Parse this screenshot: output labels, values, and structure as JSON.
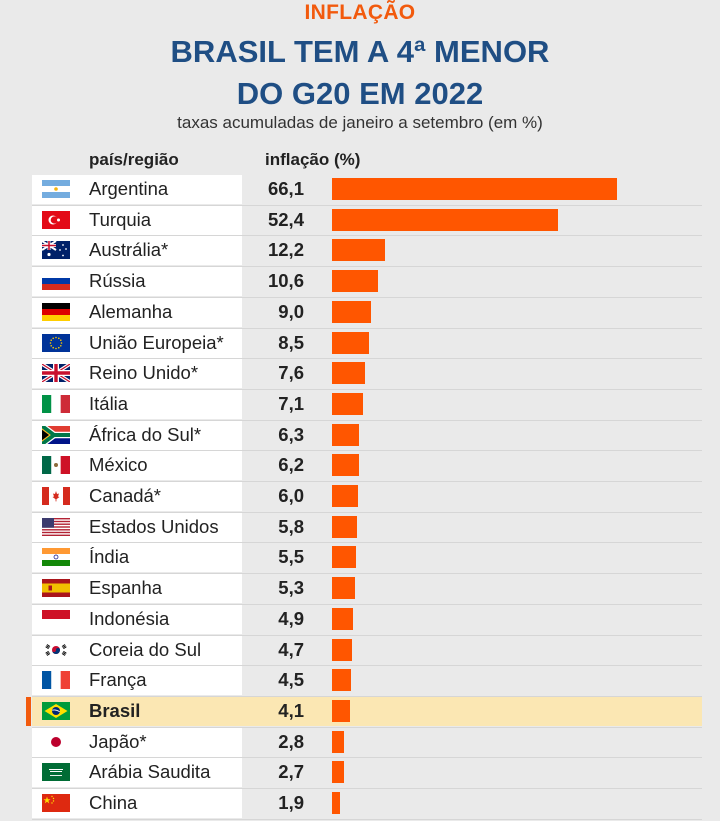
{
  "header": {
    "kicker": "INFLAÇÃO",
    "title_line1": "BRASIL TEM A 4ª MENOR",
    "title_line2": "DO G20 EM 2022",
    "subtitle": "taxas acumuladas de janeiro a setembro (em %)"
  },
  "columns": {
    "country": "país/região",
    "value": "inflação (%)"
  },
  "colors": {
    "bar": "#ff5600",
    "highlight": "#fbe7b3",
    "accent": "#f25a0d",
    "title": "#1f4e84"
  },
  "chart_data": {
    "type": "bar",
    "orientation": "horizontal",
    "title": "BRASIL TEM A 4ª MENOR DO G20 EM 2022",
    "subtitle": "taxas acumuladas de janeiro a setembro (em %)",
    "xlabel": "inflação (%)",
    "ylabel": "país/região",
    "xlim": [
      0,
      66.1
    ],
    "grid": false,
    "highlight": "Brasil",
    "categories": [
      "Argentina",
      "Turquia",
      "Austrália*",
      "Rússia",
      "Alemanha",
      "União Europeia*",
      "Reino Unido*",
      "Itália",
      "África do Sul*",
      "México",
      "Canadá*",
      "Estados Unidos",
      "Índia",
      "Espanha",
      "Indonésia",
      "Coreia do Sul",
      "França",
      "Brasil",
      "Japão*",
      "Arábia Saudita",
      "China"
    ],
    "values": [
      66.1,
      52.4,
      12.2,
      10.6,
      9.0,
      8.5,
      7.6,
      7.1,
      6.3,
      6.2,
      6.0,
      5.8,
      5.5,
      5.3,
      4.9,
      4.7,
      4.5,
      4.1,
      2.8,
      2.7,
      1.9
    ],
    "value_labels": [
      "66,1",
      "52,4",
      "12,2",
      "10,6",
      "9,0",
      "8,5",
      "7,6",
      "7,1",
      "6,3",
      "6,2",
      "6,0",
      "5,8",
      "5,5",
      "5,3",
      "4,9",
      "4,7",
      "4,5",
      "4,1",
      "2,8",
      "2,7",
      "1,9"
    ],
    "flags": [
      "argentina-flag-icon",
      "turkey-flag-icon",
      "australia-flag-icon",
      "russia-flag-icon",
      "germany-flag-icon",
      "eu-flag-icon",
      "uk-flag-icon",
      "italy-flag-icon",
      "south-africa-flag-icon",
      "mexico-flag-icon",
      "canada-flag-icon",
      "usa-flag-icon",
      "india-flag-icon",
      "spain-flag-icon",
      "indonesia-flag-icon",
      "south-korea-flag-icon",
      "france-flag-icon",
      "brazil-flag-icon",
      "japan-flag-icon",
      "saudi-arabia-flag-icon",
      "china-flag-icon"
    ]
  }
}
